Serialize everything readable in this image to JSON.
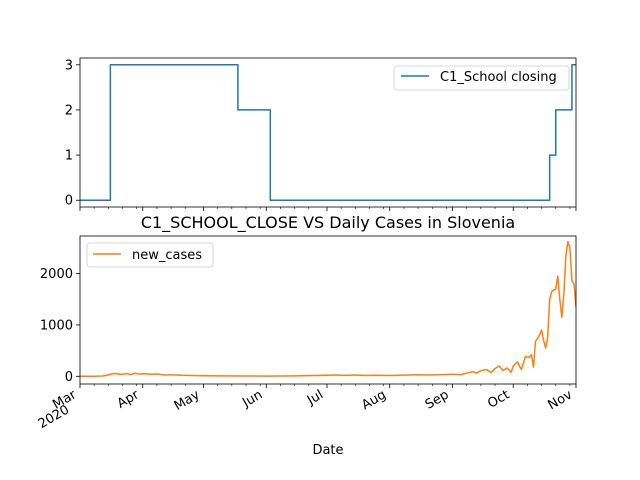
{
  "chart_data": [
    {
      "type": "line",
      "title": "",
      "xlabel": "",
      "ylabel": "",
      "ylim": [
        -0.15,
        3.15
      ],
      "yticks": [
        0,
        1,
        2,
        3
      ],
      "legend_position": "upper-right",
      "series": [
        {
          "name": "C1_School closing",
          "color": "#1f77b4",
          "step": true,
          "points": [
            [
              "2020-03-01",
              0
            ],
            [
              "2020-03-16",
              3
            ],
            [
              "2020-05-18",
              2
            ],
            [
              "2020-06-03",
              0
            ],
            [
              "2020-10-19",
              1
            ],
            [
              "2020-10-22",
              2
            ],
            [
              "2020-10-30",
              3
            ],
            [
              "2020-11-01",
              3
            ]
          ]
        }
      ]
    },
    {
      "type": "line",
      "title": "C1_SCHOOL_CLOSE VS Daily Cases in Slovenia",
      "xlabel": "Date",
      "ylabel": "",
      "ylim": [
        -150,
        2730
      ],
      "yticks": [
        0,
        1000,
        2000
      ],
      "legend_position": "upper-left",
      "series": [
        {
          "name": "new_cases",
          "color": "#ff7f0e",
          "points": [
            [
              "2020-03-01",
              0
            ],
            [
              "2020-03-08",
              2
            ],
            [
              "2020-03-12",
              5
            ],
            [
              "2020-03-14",
              15
            ],
            [
              "2020-03-16",
              40
            ],
            [
              "2020-03-18",
              55
            ],
            [
              "2020-03-20",
              45
            ],
            [
              "2020-03-22",
              35
            ],
            [
              "2020-03-24",
              55
            ],
            [
              "2020-03-26",
              30
            ],
            [
              "2020-03-28",
              60
            ],
            [
              "2020-03-30",
              45
            ],
            [
              "2020-04-02",
              50
            ],
            [
              "2020-04-05",
              40
            ],
            [
              "2020-04-08",
              45
            ],
            [
              "2020-04-12",
              25
            ],
            [
              "2020-04-15",
              30
            ],
            [
              "2020-04-20",
              20
            ],
            [
              "2020-04-25",
              15
            ],
            [
              "2020-05-01",
              10
            ],
            [
              "2020-05-10",
              8
            ],
            [
              "2020-05-20",
              5
            ],
            [
              "2020-06-01",
              4
            ],
            [
              "2020-06-15",
              8
            ],
            [
              "2020-06-25",
              15
            ],
            [
              "2020-07-01",
              20
            ],
            [
              "2020-07-05",
              25
            ],
            [
              "2020-07-10",
              18
            ],
            [
              "2020-07-15",
              25
            ],
            [
              "2020-07-20",
              15
            ],
            [
              "2020-07-25",
              20
            ],
            [
              "2020-08-01",
              15
            ],
            [
              "2020-08-05",
              20
            ],
            [
              "2020-08-10",
              25
            ],
            [
              "2020-08-15",
              30
            ],
            [
              "2020-08-20",
              25
            ],
            [
              "2020-08-25",
              30
            ],
            [
              "2020-09-01",
              40
            ],
            [
              "2020-09-05",
              30
            ],
            [
              "2020-09-08",
              60
            ],
            [
              "2020-09-11",
              90
            ],
            [
              "2020-09-13",
              60
            ],
            [
              "2020-09-15",
              110
            ],
            [
              "2020-09-18",
              130
            ],
            [
              "2020-09-20",
              70
            ],
            [
              "2020-09-22",
              150
            ],
            [
              "2020-09-24",
              200
            ],
            [
              "2020-09-26",
              110
            ],
            [
              "2020-09-28",
              160
            ],
            [
              "2020-09-30",
              80
            ],
            [
              "2020-10-01",
              200
            ],
            [
              "2020-10-03",
              280
            ],
            [
              "2020-10-05",
              130
            ],
            [
              "2020-10-07",
              380
            ],
            [
              "2020-10-09",
              370
            ],
            [
              "2020-10-10",
              420
            ],
            [
              "2020-10-11",
              180
            ],
            [
              "2020-10-12",
              680
            ],
            [
              "2020-10-14",
              800
            ],
            [
              "2020-10-15",
              900
            ],
            [
              "2020-10-16",
              700
            ],
            [
              "2020-10-17",
              550
            ],
            [
              "2020-10-18",
              750
            ],
            [
              "2020-10-19",
              1500
            ],
            [
              "2020-10-20",
              1650
            ],
            [
              "2020-10-22",
              1700
            ],
            [
              "2020-10-23",
              1950
            ],
            [
              "2020-10-24",
              1500
            ],
            [
              "2020-10-25",
              1150
            ],
            [
              "2020-10-26",
              1600
            ],
            [
              "2020-10-27",
              2350
            ],
            [
              "2020-10-28",
              2620
            ],
            [
              "2020-10-29",
              2500
            ],
            [
              "2020-10-30",
              1850
            ],
            [
              "2020-10-31",
              1800
            ],
            [
              "2020-11-01",
              1350
            ]
          ]
        }
      ]
    }
  ],
  "x_axis": {
    "range": [
      "2020-03-01",
      "2020-11-01"
    ],
    "ticks": [
      {
        "date": "2020-03-01",
        "label": "Mar",
        "sublabel": "2020"
      },
      {
        "date": "2020-04-01",
        "label": "Apr"
      },
      {
        "date": "2020-05-01",
        "label": "May"
      },
      {
        "date": "2020-06-01",
        "label": "Jun"
      },
      {
        "date": "2020-07-01",
        "label": "Jul"
      },
      {
        "date": "2020-08-01",
        "label": "Aug"
      },
      {
        "date": "2020-09-01",
        "label": "Sep"
      },
      {
        "date": "2020-10-01",
        "label": "Oct"
      },
      {
        "date": "2020-11-01",
        "label": "Nov"
      }
    ]
  }
}
